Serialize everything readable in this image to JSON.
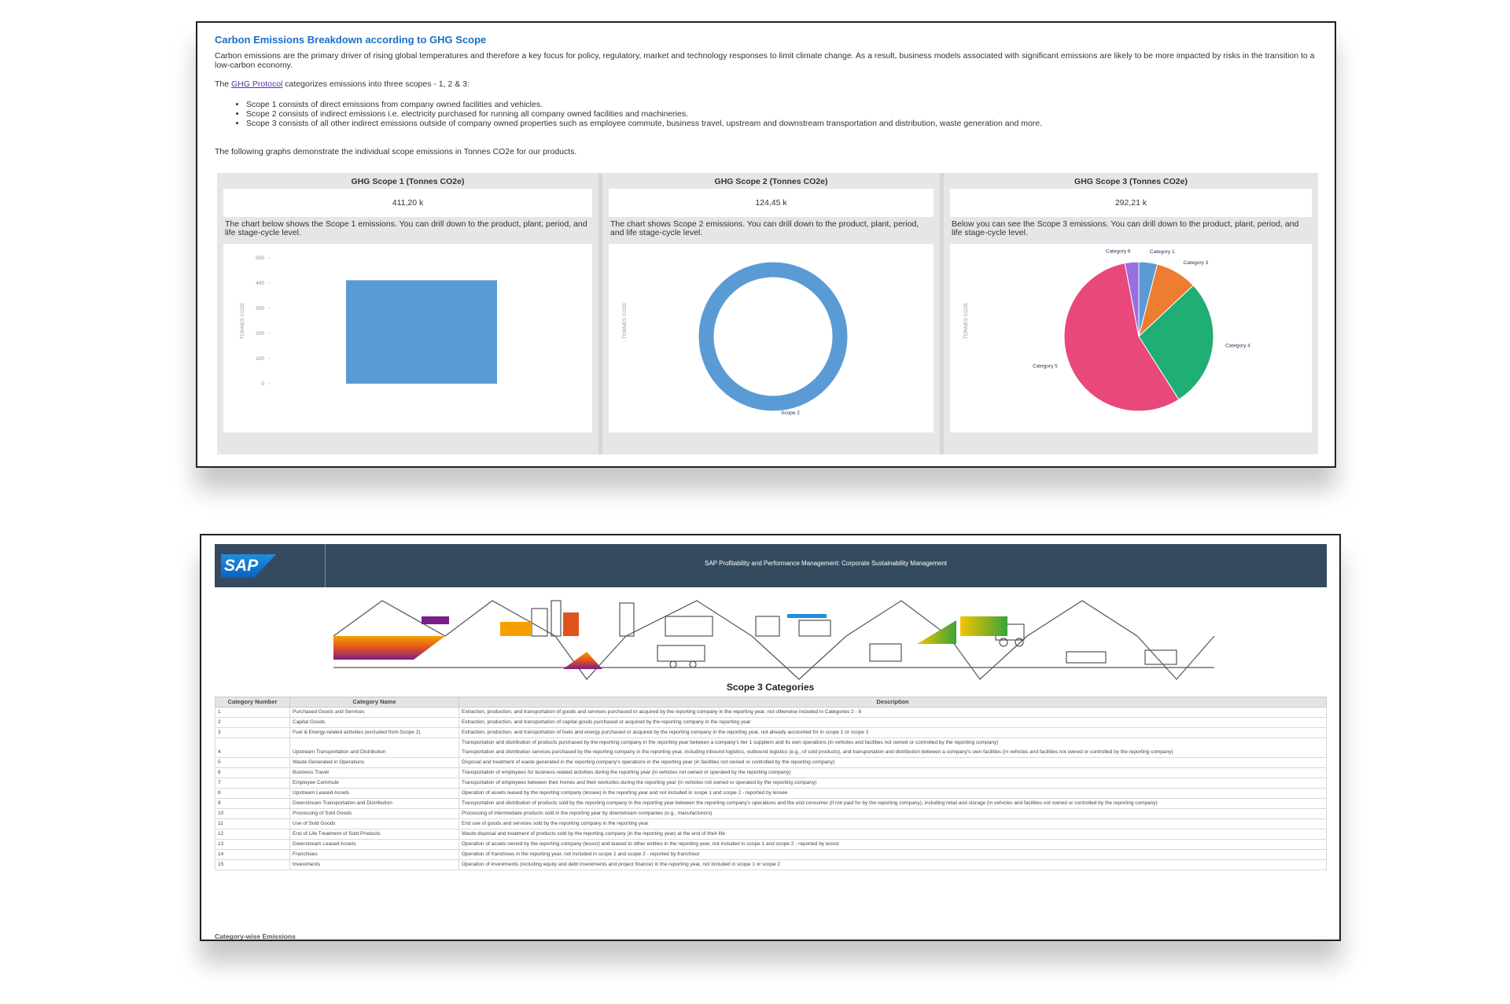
{
  "top": {
    "title": "Carbon Emissions Breakdown according to GHG Scope",
    "intro": "Carbon emissions are the primary driver of rising global temperatures and therefore a key focus for policy, regulatory, market and technology responses to limit climate change. As a result, business models associated with significant emissions are likely to be more impacted by risks in the transition to a low-carbon economy.",
    "scopes_before": "The ",
    "scopes_link": "GHG Protocol",
    "scopes_after": " categorizes emissions into three scopes - 1, 2 & 3:",
    "bullets": [
      "Scope 1 consists of direct emissions from company owned facilities and vehicles.",
      "Scope 2 consists of indirect emissions i.e. electricity purchased for running all company owned facilities and machineries.",
      "Scope 3 consists of all other indirect emissions outside of company owned properties such as employee commute, business travel, upstream and downstream transportation and distribution, waste generation and more."
    ],
    "graphs_intro": "The following graphs demonstrate the individual scope emissions in Tonnes CO2e for our products."
  },
  "chart_data": [
    {
      "type": "bar",
      "title": "GHG Scope 1 (Tonnes CO2e)",
      "kpi": "411,20 k",
      "description": "The chart below shows the Scope 1 emissions. You can drill down to the product, plant, period, and life stage-cycle level.",
      "y_label": "TONNES CO2E",
      "categories": [
        null
      ],
      "values": [
        411.2
      ],
      "color": "#5b9bd5",
      "ylim": [
        0,
        500
      ],
      "yticks": [
        0,
        100,
        200,
        300,
        400,
        500
      ]
    },
    {
      "type": "donut",
      "title": "GHG Scope 2 (Tonnes CO2e)",
      "kpi": "124,45 k",
      "description": "The chart shows Scope 2 emissions. You can drill down to the product, plant, period, and life stage-cycle level.",
      "y_label": "TONNES CO2E",
      "categories": [
        "Scope 2"
      ],
      "values": [
        124.45
      ],
      "colors": [
        "#5b9bd5"
      ]
    },
    {
      "type": "pie",
      "title": "GHG Scope 3 (Tonnes CO2e)",
      "kpi": "292,21 k",
      "description": "Below you can see the Scope 3 emissions. You can drill down to the product, plant, period, and life stage-cycle level.",
      "y_label": "TONNES CO2E",
      "categories": [
        "Category 1",
        "Category 3",
        "Category 4",
        "Category 5",
        "Category 6"
      ],
      "values": [
        4,
        9,
        28,
        56,
        3
      ],
      "colors": [
        "#5b9bd5",
        "#ed7d31",
        "#1fae73",
        "#e8487a",
        "#9b6ee0"
      ]
    }
  ],
  "bottom": {
    "logo": "SAP",
    "header_title": "SAP Profitability and Performance Management: Corporate Sustainability Management",
    "table_title": "Scope 3 Categories",
    "table": {
      "columns": [
        "Category Number",
        "Category Name",
        "Description"
      ],
      "rows": [
        [
          "1",
          "Purchased Goods and Services",
          [
            "Extraction, production, and transportation of goods and services purchased or acquired by the reporting company in the reporting year, not otherwise included in Categories 2 - 8"
          ]
        ],
        [
          "2",
          "Capital Goods",
          [
            "Extraction, production, and transportation of capital goods purchased or acquired by the reporting company in the reporting year"
          ]
        ],
        [
          "3",
          "Fuel & Energy-related activities (excluded from Scope 2)",
          [
            "Extraction, production, and transportation of fuels and energy purchased or acquired by the reporting company in the reporting year, not already accounted for in scope 1 or scope 2"
          ]
        ],
        [
          "4",
          "Upstream Transportation and Distribution",
          [
            "Transportation and distribution of products purchased by the reporting company in the reporting year between a company's tier 1 suppliers and its own operations (in vehicles and facilities not owned or controlled by the reporting company)",
            "Transportation and distribution services purchased by the reporting company in the reporting year, including inbound logistics, outbound logistics (e.g., of sold products), and transportation and distribution between a company's own facilities (in vehicles and facilities not owned or controlled by the reporting company)"
          ]
        ],
        [
          "5",
          "Waste Generated in Operations",
          [
            "Disposal and treatment of waste generated in the reporting company's operations in the reporting year (in facilities not owned or controlled by the reporting company)"
          ]
        ],
        [
          "6",
          "Business Travel",
          [
            "Transportation of employees for business related activities during the reporting year (in vehicles not owned or operated by the reporting company)"
          ]
        ],
        [
          "7",
          "Employee Commute",
          [
            "Transportation of employees between their homes and their worksites during the reporting year (in vehicles not owned or operated by the reporting company)"
          ]
        ],
        [
          "8",
          "Upstream Leased Assets",
          [
            "Operation of assets leased by the reporting company (lessee) in the reporting year and not included in scope 1 and scope 2 - reported by lessee"
          ]
        ],
        [
          "9",
          "Downstream Transportation and Distribution",
          [
            "Transportation and distribution of products sold by the reporting company in the reporting year between the reporting company's operations and the end consumer (if not paid for by the reporting company), including retail and storage (in vehicles and facilities not owned or controlled by the reporting company)"
          ]
        ],
        [
          "10",
          "Processing of Sold Goods",
          [
            "Processing of intermediate products sold in the reporting year by downstream companies (e.g., manufacturers)"
          ]
        ],
        [
          "11",
          "Use of Sold Goods",
          [
            "End use of goods and services sold by the reporting company in the reporting year"
          ]
        ],
        [
          "12",
          "End of Life Treatment of Sold Products",
          [
            "Waste disposal and treatment of products sold by the reporting company (in the reporting year) at the end of their life"
          ]
        ],
        [
          "13",
          "Downstream Leased Assets",
          [
            "Operation of assets owned by the reporting company (lessor) and leased to other entities in the reporting year, not included in scope 1 and scope 2 - reported by lessor"
          ]
        ],
        [
          "14",
          "Franchises",
          [
            "Operation of franchises in the reporting year, not included in scope 1 and scope 2 - reported by franchisor"
          ]
        ],
        [
          "15",
          "Investments",
          [
            "Operation of investments (including equity and debt investments and project finance) in the reporting year, not included in scope 1 or scope 2"
          ]
        ]
      ]
    },
    "footer": "Category-wise Emissions"
  }
}
